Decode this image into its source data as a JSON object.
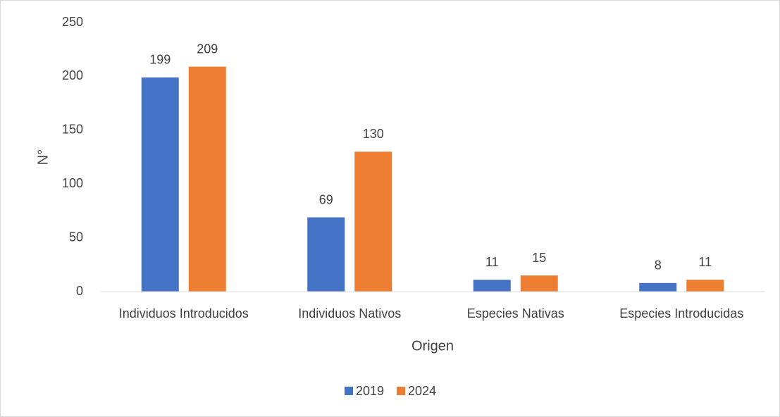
{
  "chart_data": {
    "type": "bar",
    "categories": [
      "Individuos Introducidos",
      "Individuos Nativos",
      "Especies Nativas",
      "Especies Introducidas"
    ],
    "series": [
      {
        "name": "2019",
        "color": "#4472c4",
        "values": [
          199,
          69,
          11,
          8
        ]
      },
      {
        "name": "2024",
        "color": "#ed7d31",
        "values": [
          209,
          130,
          15,
          11
        ]
      }
    ],
    "y_label": "N°",
    "x_label": "Origen",
    "ylim": [
      0,
      250
    ],
    "yticks": [
      0,
      50,
      100,
      150,
      200,
      250
    ],
    "grid": false,
    "legend": "bottom"
  }
}
